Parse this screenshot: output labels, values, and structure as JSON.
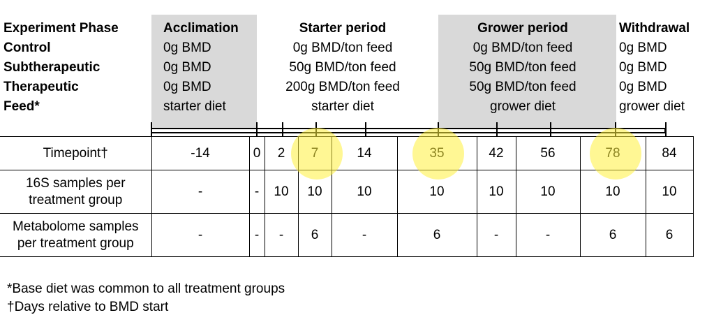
{
  "header": {
    "phase_label": "Experiment Phase",
    "row_labels": [
      "Control",
      "Subtherapeutic",
      "Therapeutic",
      "Feed*"
    ],
    "phases": [
      {
        "title": "Acclimation",
        "lines": [
          "0g BMD",
          "0g BMD",
          "0g BMD",
          "starter diet"
        ],
        "shaded": true
      },
      {
        "title": "Starter period",
        "lines": [
          "0g BMD/ton feed",
          "50g BMD/ton feed",
          "200g BMD/ton feed",
          "starter diet"
        ],
        "shaded": false
      },
      {
        "title": "Grower period",
        "lines": [
          "0g BMD/ton feed",
          "50g BMD/ton feed",
          "50g BMD/ton feed",
          "grower diet"
        ],
        "shaded": true
      },
      {
        "title": "Withdrawal",
        "lines": [
          "0g BMD",
          "0g BMD",
          "0g BMD",
          "grower diet"
        ],
        "shaded": false
      }
    ]
  },
  "table": {
    "rows": [
      {
        "label": "Timepoint†",
        "values": [
          "-14",
          "0",
          "2",
          "7",
          "14",
          "35",
          "42",
          "56",
          "78",
          "84"
        ]
      },
      {
        "label": "16S samples per treatment group",
        "values": [
          "-",
          "-",
          "10",
          "10",
          "10",
          "10",
          "10",
          "10",
          "10",
          "10"
        ]
      },
      {
        "label": "Metabolome samples per treatment group",
        "values": [
          "-",
          "-",
          "-",
          "6",
          "-",
          "6",
          "-",
          "-",
          "6",
          "6"
        ]
      }
    ],
    "highlighted_timepoints": [
      "7",
      "35",
      "78"
    ],
    "highlight_color": "#fff03c"
  },
  "footnotes": [
    "*Base diet was common to all treatment groups",
    "†Days relative to BMD start"
  ]
}
